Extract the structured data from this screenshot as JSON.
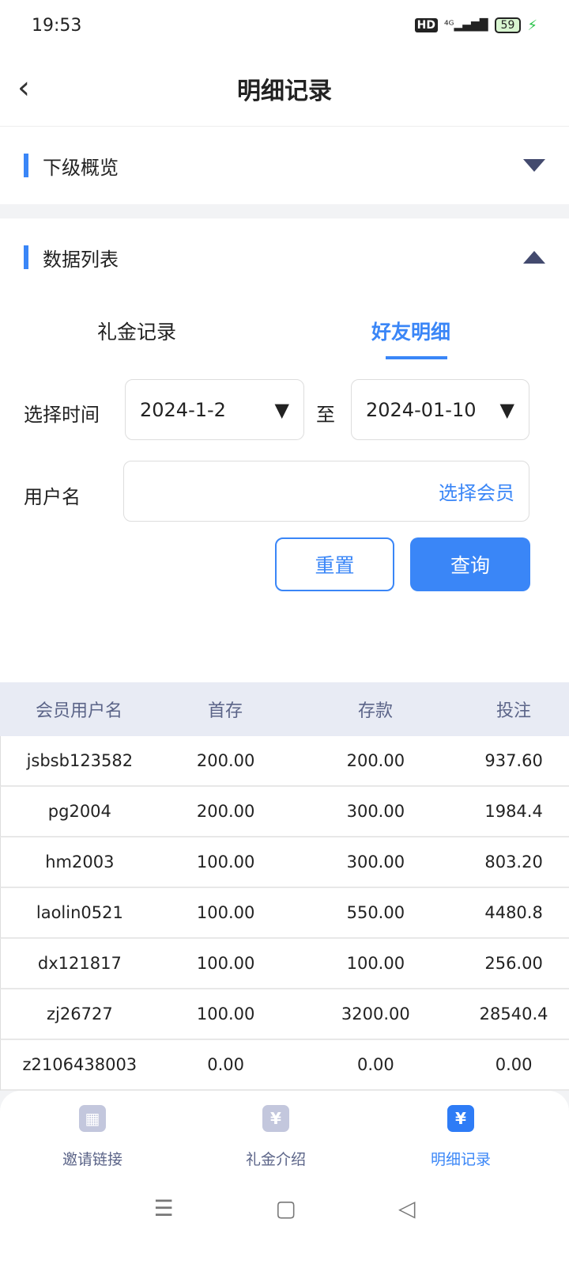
{
  "status": {
    "time": "19:53",
    "hd": "HD",
    "network": "4G",
    "battery": "59"
  },
  "header": {
    "title": "明细记录",
    "back": "‹"
  },
  "overview": {
    "title": "下级概览"
  },
  "datalist": {
    "title": "数据列表"
  },
  "tabs": [
    {
      "label": "礼金记录",
      "active": false
    },
    {
      "label": "好友明细",
      "active": true
    }
  ],
  "filter": {
    "time_label": "选择时间",
    "start": "2024-1-2",
    "to": "至",
    "end": "2024-01-10",
    "user_label": "用户名",
    "user_placeholder": "选择会员",
    "reset": "重置",
    "query": "查询"
  },
  "table": {
    "headers": [
      "会员用户名",
      "首存",
      "存款",
      "投注"
    ],
    "rows": [
      [
        "jsbsb123582",
        "200.00",
        "200.00",
        "937.60"
      ],
      [
        "pg2004",
        "200.00",
        "300.00",
        "1984.4"
      ],
      [
        "hm2003",
        "100.00",
        "300.00",
        "803.20"
      ],
      [
        "laolin0521",
        "100.00",
        "550.00",
        "4480.8"
      ],
      [
        "dx121817",
        "100.00",
        "100.00",
        "256.00"
      ],
      [
        "zj26727",
        "100.00",
        "3200.00",
        "28540.4"
      ],
      [
        "z2106438003",
        "0.00",
        "0.00",
        "0.00"
      ]
    ]
  },
  "nav": [
    {
      "label": "邀请链接",
      "icon": "qr-code-icon",
      "active": false
    },
    {
      "label": "礼金介绍",
      "icon": "yen-ticket-icon",
      "active": false
    },
    {
      "label": "明细记录",
      "icon": "yen-clipboard-icon",
      "active": true
    }
  ],
  "colors": {
    "accent": "#3a86f7",
    "header_bg": "#e8ebf4"
  }
}
